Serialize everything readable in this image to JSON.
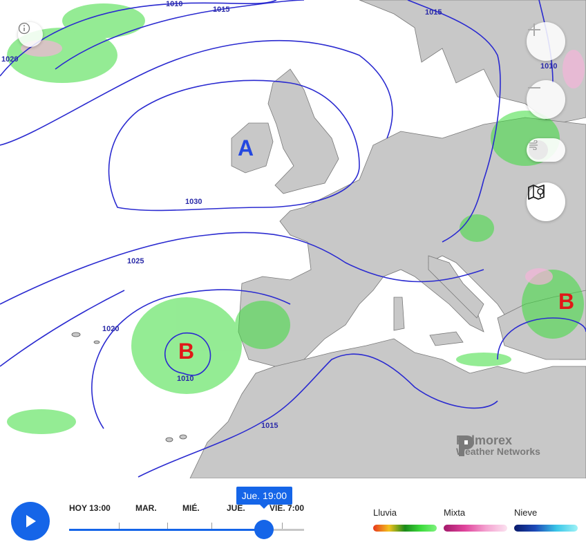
{
  "map": {
    "pressure_centers": [
      {
        "letter": "A",
        "color": "#2448e0"
      },
      {
        "letter": "B",
        "color": "#e01818"
      },
      {
        "letter": "B",
        "color": "#e01818"
      }
    ],
    "isobar_labels": [
      "1010",
      "1015",
      "1015",
      "1020",
      "1030",
      "1025",
      "1020",
      "1010",
      "1015",
      "1010"
    ],
    "colors": {
      "sea": "#ffffff",
      "land": "#c8c8c8",
      "isobar": "#2a2ad0",
      "rain": "#3ddc3d",
      "snow": "#f4b4d9"
    }
  },
  "controls": {
    "info_icon": "info-icon",
    "zoom_in_icon": "plus-icon",
    "zoom_out_icon": "minus-icon",
    "wind_icon": "wind-icon",
    "layers_icon": "map-pin-icon"
  },
  "brand": {
    "line1": "Pelmorex",
    "line2": "Weather Networks"
  },
  "timeline": {
    "play_icon": "play-icon",
    "ticks": [
      "HOY 13:00",
      "MAR.",
      "MIÉ.",
      "JUE.",
      "VIE. 7:00"
    ],
    "current_label": "Jue. 19:00",
    "position": 0.83
  },
  "legend": [
    {
      "label": "Lluvia",
      "gradient": "linear-gradient(90deg,#e8361b,#f2c21f,#1a8a1a,#3ddc3d,#7ef27e)"
    },
    {
      "label": "Mixta",
      "gradient": "linear-gradient(90deg,#a3196a,#e0449c,#f4a2d0,#fbe2f0)"
    },
    {
      "label": "Nieve",
      "gradient": "linear-gradient(90deg,#0a1a6b,#1d4ab8,#3ac6e8,#9ff2f6)"
    }
  ]
}
